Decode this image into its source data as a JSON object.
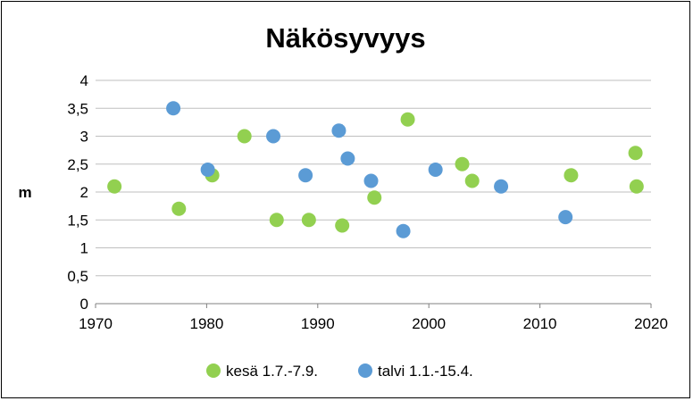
{
  "chart_data": {
    "type": "scatter",
    "title": "Näkösyvyys",
    "xlabel": "",
    "ylabel": "m",
    "xlim": [
      1970,
      2020
    ],
    "ylim": [
      0,
      4
    ],
    "x_ticks": [
      "1970",
      "1980",
      "1990",
      "2000",
      "2010",
      "2020"
    ],
    "y_ticks": [
      "0",
      "0,5",
      "1",
      "1,5",
      "2",
      "2,5",
      "3",
      "3,5",
      "4"
    ],
    "grid": true,
    "legend_position": "bottom",
    "series": [
      {
        "name": "kesä 1.7.-7.9.",
        "color": "#92d050",
        "points": [
          {
            "x": 1971.7,
            "y": 2.1
          },
          {
            "x": 1977.5,
            "y": 1.7
          },
          {
            "x": 1980.5,
            "y": 2.3
          },
          {
            "x": 1983.4,
            "y": 3.0
          },
          {
            "x": 1986.3,
            "y": 1.5
          },
          {
            "x": 1989.2,
            "y": 1.5
          },
          {
            "x": 1992.2,
            "y": 1.4
          },
          {
            "x": 1995.1,
            "y": 1.9
          },
          {
            "x": 1998.1,
            "y": 3.3
          },
          {
            "x": 2003.0,
            "y": 2.5
          },
          {
            "x": 2003.9,
            "y": 2.2
          },
          {
            "x": 2012.8,
            "y": 2.3
          },
          {
            "x": 2018.6,
            "y": 2.7
          },
          {
            "x": 2018.7,
            "y": 2.1
          }
        ]
      },
      {
        "name": "talvi 1.1.-15.4.",
        "color": "#5b9bd5",
        "points": [
          {
            "x": 1977.0,
            "y": 3.5
          },
          {
            "x": 1980.1,
            "y": 2.4
          },
          {
            "x": 1986.0,
            "y": 3.0
          },
          {
            "x": 1988.9,
            "y": 2.3
          },
          {
            "x": 1991.9,
            "y": 3.1
          },
          {
            "x": 1992.7,
            "y": 2.6
          },
          {
            "x": 1994.8,
            "y": 2.2
          },
          {
            "x": 1997.7,
            "y": 1.3
          },
          {
            "x": 2000.6,
            "y": 2.4
          },
          {
            "x": 2006.5,
            "y": 2.1
          },
          {
            "x": 2012.3,
            "y": 1.55
          }
        ]
      }
    ]
  }
}
